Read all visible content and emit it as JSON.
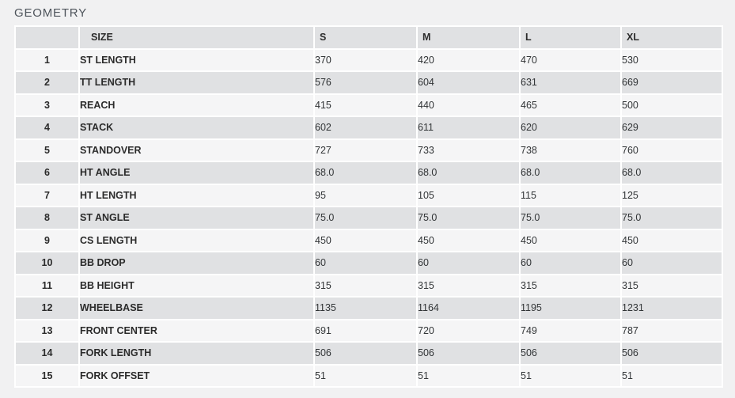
{
  "page": {
    "title": "GEOMETRY"
  },
  "table": {
    "columns": [
      {
        "key": "num",
        "label": ""
      },
      {
        "key": "size",
        "label": "SIZE"
      },
      {
        "key": "s",
        "label": "S"
      },
      {
        "key": "m",
        "label": "M"
      },
      {
        "key": "l",
        "label": "L"
      },
      {
        "key": "xl",
        "label": "XL"
      }
    ],
    "rows": [
      {
        "num": "1",
        "label": "ST LENGTH",
        "values": [
          "370",
          "420",
          "470",
          "530"
        ]
      },
      {
        "num": "2",
        "label": "TT LENGTH",
        "values": [
          "576",
          "604",
          "631",
          "669"
        ]
      },
      {
        "num": "3",
        "label": "REACH",
        "values": [
          "415",
          "440",
          "465",
          "500"
        ]
      },
      {
        "num": "4",
        "label": "STACK",
        "values": [
          "602",
          "611",
          "620",
          "629"
        ]
      },
      {
        "num": "5",
        "label": "STANDOVER",
        "values": [
          "727",
          "733",
          "738",
          "760"
        ]
      },
      {
        "num": "6",
        "label": "HT ANGLE",
        "values": [
          "68.0",
          "68.0",
          "68.0",
          "68.0"
        ]
      },
      {
        "num": "7",
        "label": "HT LENGTH",
        "values": [
          "95",
          "105",
          "115",
          "125"
        ]
      },
      {
        "num": "8",
        "label": "ST ANGLE",
        "values": [
          "75.0",
          "75.0",
          "75.0",
          "75.0"
        ]
      },
      {
        "num": "9",
        "label": "CS LENGTH",
        "values": [
          "450",
          "450",
          "450",
          "450"
        ]
      },
      {
        "num": "10",
        "label": "BB DROP",
        "values": [
          "60",
          "60",
          "60",
          "60"
        ]
      },
      {
        "num": "11",
        "label": "BB HEIGHT",
        "values": [
          "315",
          "315",
          "315",
          "315"
        ]
      },
      {
        "num": "12",
        "label": "WHEELBASE",
        "values": [
          "1135",
          "1164",
          "1195",
          "1231"
        ]
      },
      {
        "num": "13",
        "label": "FRONT CENTER",
        "values": [
          "691",
          "720",
          "749",
          "787"
        ]
      },
      {
        "num": "14",
        "label": "FORK LENGTH",
        "values": [
          "506",
          "506",
          "506",
          "506"
        ]
      },
      {
        "num": "15",
        "label": "FORK OFFSET",
        "values": [
          "51",
          "51",
          "51",
          "51"
        ]
      }
    ]
  },
  "colors": {
    "page_background": "#f1f1f2",
    "gap": "#ffffff",
    "header_background": "#e0e1e3",
    "row_light": "#f5f5f6",
    "row_dark": "#e0e1e3",
    "title_text": "#4e545b",
    "label_text": "#2b2b2b",
    "value_text": "#323537"
  }
}
